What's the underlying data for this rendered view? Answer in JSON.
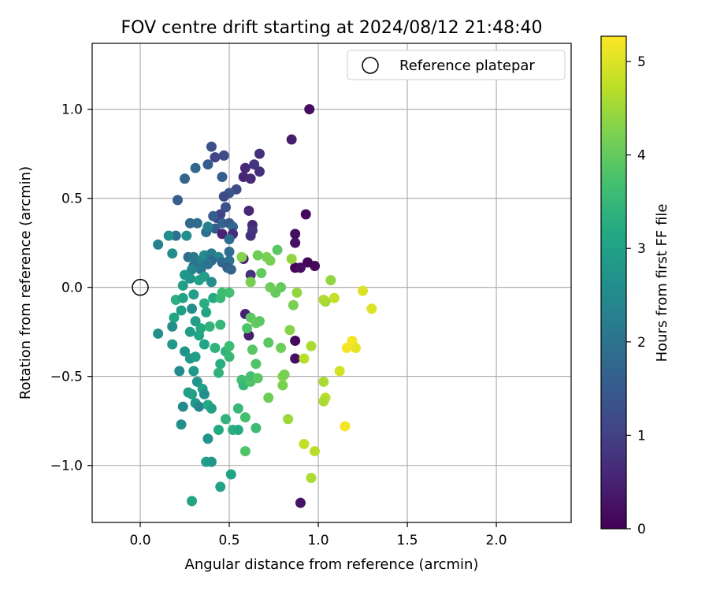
{
  "chart_data": {
    "type": "scatter",
    "title": "FOV centre drift starting at 2024/08/12 21:48:40",
    "xlabel": "Angular distance from reference (arcmin)",
    "ylabel": "Rotation from reference (arcmin)",
    "xlim": [
      -0.27,
      2.42
    ],
    "ylim": [
      -1.32,
      1.37
    ],
    "xticks": [
      0.0,
      0.5,
      1.0,
      1.5,
      2.0
    ],
    "xtick_labels": [
      "0.0",
      "0.5",
      "1.0",
      "1.5",
      "2.0"
    ],
    "yticks": [
      1.0,
      0.5,
      0.0,
      -0.5,
      -1.0
    ],
    "ytick_labels": [
      "1.0",
      "0.5",
      "0.0",
      "−0.5",
      "−1.0"
    ],
    "grid": true,
    "legend": {
      "position": "top-right",
      "entries": [
        "Reference platepar"
      ]
    },
    "reference_point": {
      "x": 0.0,
      "y": 0.0
    },
    "colorbar": {
      "label": "Hours from first FF file",
      "range": [
        0,
        5.27
      ],
      "ticks": [
        0,
        1,
        2,
        3,
        4,
        5
      ],
      "tick_labels": [
        "0",
        "1",
        "2",
        "3",
        "4",
        "5"
      ],
      "colormap": "viridis"
    },
    "points": [
      {
        "x": 0.95,
        "y": 1.0,
        "h": 0.2
      },
      {
        "x": 0.85,
        "y": 0.83,
        "h": 0.4
      },
      {
        "x": 0.67,
        "y": 0.75,
        "h": 0.7
      },
      {
        "x": 0.64,
        "y": 0.69,
        "h": 0.8
      },
      {
        "x": 0.67,
        "y": 0.65,
        "h": 0.7
      },
      {
        "x": 0.59,
        "y": 0.67,
        "h": 0.6
      },
      {
        "x": 0.58,
        "y": 0.62,
        "h": 0.55
      },
      {
        "x": 0.62,
        "y": 0.61,
        "h": 0.65
      },
      {
        "x": 0.93,
        "y": 0.41,
        "h": 0.1
      },
      {
        "x": 0.61,
        "y": 0.43,
        "h": 0.6
      },
      {
        "x": 0.87,
        "y": 0.3,
        "h": 0.2
      },
      {
        "x": 0.87,
        "y": 0.25,
        "h": 0.25
      },
      {
        "x": 0.63,
        "y": 0.35,
        "h": 0.6
      },
      {
        "x": 0.62,
        "y": 0.29,
        "h": 0.7
      },
      {
        "x": 0.63,
        "y": 0.32,
        "h": 0.8
      },
      {
        "x": 0.87,
        "y": 0.11,
        "h": 0.05
      },
      {
        "x": 0.94,
        "y": 0.14,
        "h": 0.05
      },
      {
        "x": 0.98,
        "y": 0.12,
        "h": 0.1
      },
      {
        "x": 0.9,
        "y": 0.11,
        "h": 0.2
      },
      {
        "x": 0.62,
        "y": 0.07,
        "h": 0.7
      },
      {
        "x": 0.58,
        "y": 0.16,
        "h": 0.5
      },
      {
        "x": 0.87,
        "y": -0.3,
        "h": 0.1
      },
      {
        "x": 0.87,
        "y": -0.4,
        "h": 0.2
      },
      {
        "x": 0.9,
        "y": -1.21,
        "h": 0.3
      },
      {
        "x": 0.59,
        "y": -0.15,
        "h": 0.5
      },
      {
        "x": 0.61,
        "y": -0.27,
        "h": 0.4
      },
      {
        "x": 0.42,
        "y": 0.33,
        "h": 1.5
      },
      {
        "x": 0.4,
        "y": 0.79,
        "h": 1.3
      },
      {
        "x": 0.47,
        "y": 0.74,
        "h": 1.2
      },
      {
        "x": 0.42,
        "y": 0.73,
        "h": 1.1
      },
      {
        "x": 0.38,
        "y": 0.69,
        "h": 1.5
      },
      {
        "x": 0.31,
        "y": 0.67,
        "h": 1.8
      },
      {
        "x": 0.25,
        "y": 0.61,
        "h": 1.7
      },
      {
        "x": 0.21,
        "y": 0.49,
        "h": 1.6
      },
      {
        "x": 0.46,
        "y": 0.62,
        "h": 1.6
      },
      {
        "x": 0.54,
        "y": 0.55,
        "h": 1.2
      },
      {
        "x": 0.5,
        "y": 0.53,
        "h": 1.4
      },
      {
        "x": 0.47,
        "y": 0.51,
        "h": 1.2
      },
      {
        "x": 0.48,
        "y": 0.45,
        "h": 1.3
      },
      {
        "x": 0.45,
        "y": 0.41,
        "h": 1.1
      },
      {
        "x": 0.43,
        "y": 0.39,
        "h": 1.0
      },
      {
        "x": 0.41,
        "y": 0.4,
        "h": 1.6
      },
      {
        "x": 0.46,
        "y": 0.36,
        "h": 1.7
      },
      {
        "x": 0.5,
        "y": 0.36,
        "h": 1.5
      },
      {
        "x": 0.52,
        "y": 0.34,
        "h": 1.8
      },
      {
        "x": 0.46,
        "y": 0.3,
        "h": 0.5
      },
      {
        "x": 0.52,
        "y": 0.3,
        "h": 0.7
      },
      {
        "x": 0.5,
        "y": 0.27,
        "h": 1.9
      },
      {
        "x": 0.32,
        "y": 0.36,
        "h": 1.9
      },
      {
        "x": 0.28,
        "y": 0.36,
        "h": 1.8
      },
      {
        "x": 0.37,
        "y": 0.31,
        "h": 1.9
      },
      {
        "x": 0.38,
        "y": 0.34,
        "h": 2.3
      },
      {
        "x": 0.2,
        "y": 0.29,
        "h": 1.9
      },
      {
        "x": 0.16,
        "y": 0.29,
        "h": 2.6
      },
      {
        "x": 0.1,
        "y": 0.24,
        "h": 2.3
      },
      {
        "x": 0.26,
        "y": 0.29,
        "h": 2.6
      },
      {
        "x": 0.18,
        "y": 0.19,
        "h": 2.6
      },
      {
        "x": 0.27,
        "y": 0.17,
        "h": 1.9
      },
      {
        "x": 0.3,
        "y": 0.17,
        "h": 2.1
      },
      {
        "x": 0.34,
        "y": 0.15,
        "h": 2.3
      },
      {
        "x": 0.3,
        "y": 0.12,
        "h": 2.0
      },
      {
        "x": 0.36,
        "y": 0.18,
        "h": 2.5
      },
      {
        "x": 0.4,
        "y": 0.19,
        "h": 2.2
      },
      {
        "x": 0.44,
        "y": 0.17,
        "h": 2.4
      },
      {
        "x": 0.4,
        "y": 0.15,
        "h": 1.8
      },
      {
        "x": 0.38,
        "y": 0.13,
        "h": 2.0
      },
      {
        "x": 0.34,
        "y": 0.1,
        "h": 2.1
      },
      {
        "x": 0.29,
        "y": 0.1,
        "h": 2.4
      },
      {
        "x": 0.46,
        "y": 0.14,
        "h": 1.8
      },
      {
        "x": 0.5,
        "y": 0.2,
        "h": 1.9
      },
      {
        "x": 0.5,
        "y": 0.15,
        "h": 2.0
      },
      {
        "x": 0.49,
        "y": 0.11,
        "h": 1.6
      },
      {
        "x": 0.51,
        "y": 0.1,
        "h": 1.7
      },
      {
        "x": 0.25,
        "y": 0.07,
        "h": 2.8
      },
      {
        "x": 0.28,
        "y": 0.05,
        "h": 2.7
      },
      {
        "x": 0.33,
        "y": 0.04,
        "h": 3.0
      },
      {
        "x": 0.36,
        "y": 0.06,
        "h": 2.9
      },
      {
        "x": 0.4,
        "y": 0.03,
        "h": 2.6
      },
      {
        "x": 0.24,
        "y": 0.01,
        "h": 2.9
      },
      {
        "x": 0.2,
        "y": -0.07,
        "h": 3.3
      },
      {
        "x": 0.24,
        "y": -0.06,
        "h": 3.0
      },
      {
        "x": 0.3,
        "y": -0.04,
        "h": 2.9
      },
      {
        "x": 0.36,
        "y": -0.09,
        "h": 3.3
      },
      {
        "x": 0.41,
        "y": -0.06,
        "h": 3.2
      },
      {
        "x": 0.45,
        "y": -0.06,
        "h": 3.5
      },
      {
        "x": 0.46,
        "y": -0.03,
        "h": 3.6
      },
      {
        "x": 0.5,
        "y": -0.03,
        "h": 3.7
      },
      {
        "x": 0.19,
        "y": -0.17,
        "h": 3.1
      },
      {
        "x": 0.23,
        "y": -0.13,
        "h": 2.9
      },
      {
        "x": 0.29,
        "y": -0.12,
        "h": 2.6
      },
      {
        "x": 0.37,
        "y": -0.14,
        "h": 3.1
      },
      {
        "x": 0.31,
        "y": -0.19,
        "h": 2.9
      },
      {
        "x": 0.18,
        "y": -0.22,
        "h": 2.6
      },
      {
        "x": 0.1,
        "y": -0.26,
        "h": 2.6
      },
      {
        "x": 0.28,
        "y": -0.25,
        "h": 2.9
      },
      {
        "x": 0.34,
        "y": -0.23,
        "h": 3.2
      },
      {
        "x": 0.39,
        "y": -0.22,
        "h": 3.4
      },
      {
        "x": 0.45,
        "y": -0.21,
        "h": 3.5
      },
      {
        "x": 0.33,
        "y": -0.27,
        "h": 3.1
      },
      {
        "x": 0.18,
        "y": -0.32,
        "h": 2.8
      },
      {
        "x": 0.25,
        "y": -0.36,
        "h": 2.7
      },
      {
        "x": 0.28,
        "y": -0.4,
        "h": 2.8
      },
      {
        "x": 0.31,
        "y": -0.39,
        "h": 2.9
      },
      {
        "x": 0.36,
        "y": -0.32,
        "h": 3.1
      },
      {
        "x": 0.42,
        "y": -0.34,
        "h": 3.4
      },
      {
        "x": 0.48,
        "y": -0.36,
        "h": 3.4
      },
      {
        "x": 0.5,
        "y": -0.39,
        "h": 3.5
      },
      {
        "x": 0.5,
        "y": -0.33,
        "h": 3.6
      },
      {
        "x": 0.45,
        "y": -0.43,
        "h": 3.3
      },
      {
        "x": 0.44,
        "y": -0.48,
        "h": 3.4
      },
      {
        "x": 0.22,
        "y": -0.47,
        "h": 2.5
      },
      {
        "x": 0.3,
        "y": -0.47,
        "h": 2.8
      },
      {
        "x": 0.32,
        "y": -0.53,
        "h": 2.7
      },
      {
        "x": 0.27,
        "y": -0.59,
        "h": 2.9
      },
      {
        "x": 0.29,
        "y": -0.6,
        "h": 3.0
      },
      {
        "x": 0.35,
        "y": -0.57,
        "h": 3.0
      },
      {
        "x": 0.36,
        "y": -0.6,
        "h": 2.6
      },
      {
        "x": 0.31,
        "y": -0.65,
        "h": 2.8
      },
      {
        "x": 0.33,
        "y": -0.67,
        "h": 2.4
      },
      {
        "x": 0.38,
        "y": -0.66,
        "h": 3.2
      },
      {
        "x": 0.4,
        "y": -0.68,
        "h": 3.0
      },
      {
        "x": 0.24,
        "y": -0.67,
        "h": 2.5
      },
      {
        "x": 0.23,
        "y": -0.77,
        "h": 2.6
      },
      {
        "x": 0.48,
        "y": -0.74,
        "h": 3.4
      },
      {
        "x": 0.52,
        "y": -0.8,
        "h": 3.3
      },
      {
        "x": 0.55,
        "y": -0.8,
        "h": 3.2
      },
      {
        "x": 0.44,
        "y": -0.8,
        "h": 3.2
      },
      {
        "x": 0.38,
        "y": -0.85,
        "h": 2.7
      },
      {
        "x": 0.37,
        "y": -0.98,
        "h": 3.0
      },
      {
        "x": 0.4,
        "y": -0.98,
        "h": 2.8
      },
      {
        "x": 0.51,
        "y": -1.05,
        "h": 3.1
      },
      {
        "x": 0.45,
        "y": -1.12,
        "h": 3.0
      },
      {
        "x": 0.29,
        "y": -1.2,
        "h": 3.1
      },
      {
        "x": 0.55,
        "y": -0.68,
        "h": 3.5
      },
      {
        "x": 0.59,
        "y": -0.73,
        "h": 3.7
      },
      {
        "x": 0.65,
        "y": -0.79,
        "h": 3.6
      },
      {
        "x": 0.59,
        "y": -0.92,
        "h": 3.8
      },
      {
        "x": 0.57,
        "y": -0.52,
        "h": 3.7
      },
      {
        "x": 0.58,
        "y": -0.55,
        "h": 3.5
      },
      {
        "x": 0.62,
        "y": -0.53,
        "h": 3.8
      },
      {
        "x": 0.62,
        "y": -0.5,
        "h": 3.7
      },
      {
        "x": 0.66,
        "y": -0.51,
        "h": 3.9
      },
      {
        "x": 0.65,
        "y": -0.43,
        "h": 3.8
      },
      {
        "x": 0.63,
        "y": -0.35,
        "h": 3.9
      },
      {
        "x": 0.6,
        "y": -0.23,
        "h": 3.8
      },
      {
        "x": 0.62,
        "y": -0.17,
        "h": 3.9
      },
      {
        "x": 0.65,
        "y": -0.2,
        "h": 4.0
      },
      {
        "x": 0.67,
        "y": -0.19,
        "h": 3.9
      },
      {
        "x": 0.72,
        "y": -0.31,
        "h": 3.9
      },
      {
        "x": 0.72,
        "y": -0.62,
        "h": 4.1
      },
      {
        "x": 0.8,
        "y": -0.55,
        "h": 4.2
      },
      {
        "x": 0.8,
        "y": -0.5,
        "h": 4.3
      },
      {
        "x": 0.81,
        "y": -0.49,
        "h": 4.2
      },
      {
        "x": 0.79,
        "y": -0.34,
        "h": 4.1
      },
      {
        "x": 0.84,
        "y": -0.24,
        "h": 4.3
      },
      {
        "x": 0.86,
        "y": -0.1,
        "h": 4.2
      },
      {
        "x": 0.88,
        "y": -0.03,
        "h": 4.4
      },
      {
        "x": 0.76,
        "y": -0.03,
        "h": 4.0
      },
      {
        "x": 0.73,
        "y": 0.0,
        "h": 4.1
      },
      {
        "x": 0.79,
        "y": 0.0,
        "h": 4.0
      },
      {
        "x": 0.62,
        "y": 0.03,
        "h": 4.2
      },
      {
        "x": 0.68,
        "y": 0.08,
        "h": 4.0
      },
      {
        "x": 0.57,
        "y": 0.17,
        "h": 4.3
      },
      {
        "x": 0.66,
        "y": 0.18,
        "h": 4.1
      },
      {
        "x": 0.71,
        "y": 0.17,
        "h": 4.2
      },
      {
        "x": 0.73,
        "y": 0.15,
        "h": 4.2
      },
      {
        "x": 0.77,
        "y": 0.21,
        "h": 3.9
      },
      {
        "x": 0.85,
        "y": 0.16,
        "h": 4.4
      },
      {
        "x": 0.83,
        "y": -0.74,
        "h": 4.5
      },
      {
        "x": 0.96,
        "y": -0.33,
        "h": 4.6
      },
      {
        "x": 0.92,
        "y": -0.4,
        "h": 4.7
      },
      {
        "x": 1.07,
        "y": 0.04,
        "h": 4.4
      },
      {
        "x": 1.04,
        "y": -0.08,
        "h": 4.5
      },
      {
        "x": 1.03,
        "y": -0.07,
        "h": 4.6
      },
      {
        "x": 1.09,
        "y": -0.06,
        "h": 4.8
      },
      {
        "x": 1.03,
        "y": -0.53,
        "h": 4.6
      },
      {
        "x": 1.04,
        "y": -0.62,
        "h": 4.7
      },
      {
        "x": 1.03,
        "y": -0.64,
        "h": 4.6
      },
      {
        "x": 0.92,
        "y": -0.88,
        "h": 4.8
      },
      {
        "x": 0.98,
        "y": -0.92,
        "h": 4.7
      },
      {
        "x": 0.96,
        "y": -1.07,
        "h": 4.6
      },
      {
        "x": 1.25,
        "y": -0.02,
        "h": 5.0
      },
      {
        "x": 1.3,
        "y": -0.12,
        "h": 5.0
      },
      {
        "x": 1.19,
        "y": -0.3,
        "h": 5.2
      },
      {
        "x": 1.16,
        "y": -0.34,
        "h": 5.2
      },
      {
        "x": 1.21,
        "y": -0.34,
        "h": 5.1
      },
      {
        "x": 1.12,
        "y": -0.47,
        "h": 4.9
      },
      {
        "x": 1.15,
        "y": -0.78,
        "h": 5.2
      }
    ]
  }
}
